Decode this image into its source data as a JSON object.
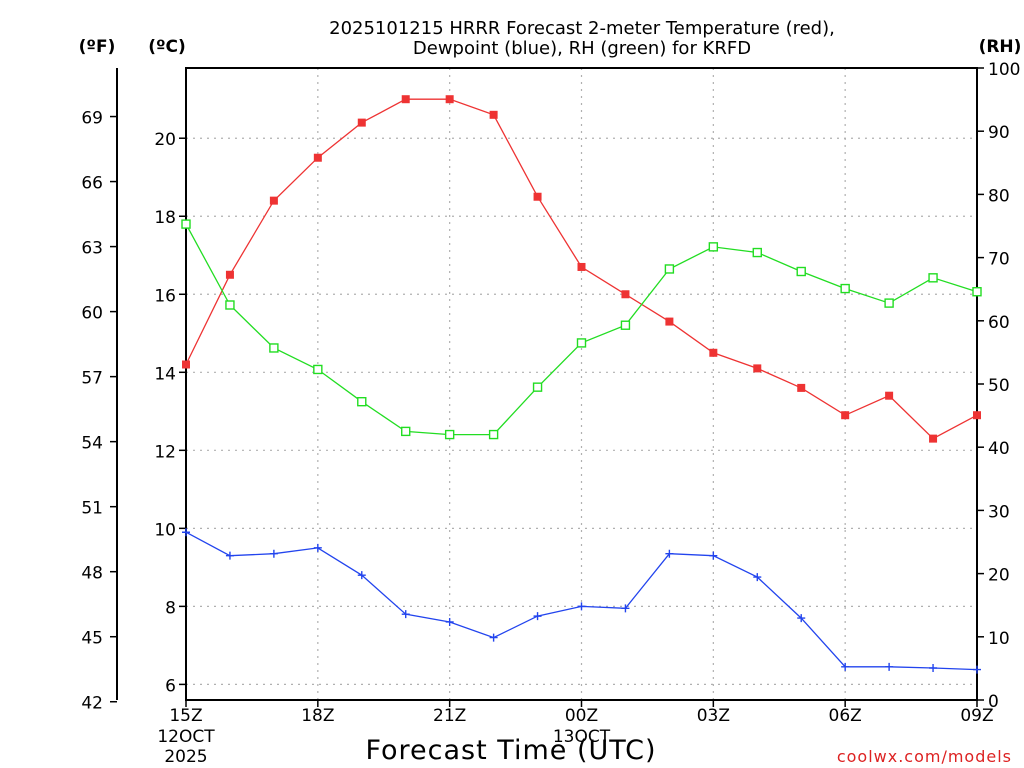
{
  "chart_data": {
    "type": "line",
    "title_line1": "2025101215 HRRR Forecast 2-meter Temperature (red),",
    "title_line2": "Dewpoint (blue), RH (green) for KRFD",
    "xlabel": "Forecast Time (UTC)",
    "watermark": "coolwx.com/models",
    "units": {
      "fahrenheit": "(ºF)",
      "celsius": "(ºC)",
      "rh": "(RH)"
    },
    "x_hours": [
      0,
      1,
      2,
      3,
      4,
      5,
      6,
      7,
      8,
      9,
      10,
      11,
      12,
      13,
      14,
      15,
      16,
      17,
      18
    ],
    "x_ticks": [
      {
        "hour": 0,
        "label": "15Z",
        "sub1": "12OCT",
        "sub2": "2025"
      },
      {
        "hour": 3,
        "label": "18Z",
        "sub1": "",
        "sub2": ""
      },
      {
        "hour": 6,
        "label": "21Z",
        "sub1": "",
        "sub2": ""
      },
      {
        "hour": 9,
        "label": "00Z",
        "sub1": "13OCT",
        "sub2": ""
      },
      {
        "hour": 12,
        "label": "03Z",
        "sub1": "",
        "sub2": ""
      },
      {
        "hour": 15,
        "label": "06Z",
        "sub1": "",
        "sub2": ""
      },
      {
        "hour": 18,
        "label": "09Z",
        "sub1": "",
        "sub2": ""
      }
    ],
    "xlim": [
      0,
      18
    ],
    "celsius_axis": {
      "ylim": [
        5.6,
        21.8
      ],
      "ticks": [
        "6",
        "8",
        "10",
        "12",
        "14",
        "16",
        "18",
        "20"
      ]
    },
    "fahrenheit_axis": {
      "ticks": [
        "42",
        "45",
        "48",
        "51",
        "54",
        "57",
        "60",
        "63",
        "66",
        "69"
      ]
    },
    "rh_axis": {
      "ylim": [
        0,
        100
      ],
      "ticks": [
        "0",
        "10",
        "20",
        "30",
        "40",
        "50",
        "60",
        "70",
        "80",
        "90",
        "100"
      ]
    },
    "series": [
      {
        "name": "Temperature",
        "unit": "C",
        "color": "#ee3333",
        "marker": "filled-square",
        "values": [
          14.2,
          16.5,
          18.4,
          19.5,
          20.4,
          21.0,
          21.0,
          20.6,
          18.5,
          16.7,
          16.0,
          15.3,
          14.5,
          14.1,
          13.6,
          12.9,
          13.4,
          12.3,
          12.9
        ]
      },
      {
        "name": "Dewpoint",
        "unit": "C",
        "color": "#2244ee",
        "marker": "plus",
        "values": [
          9.9,
          9.3,
          9.35,
          9.5,
          8.8,
          7.8,
          7.6,
          7.2,
          7.75,
          8.0,
          7.95,
          9.35,
          9.3,
          8.75,
          7.7,
          6.45,
          6.45,
          6.42,
          6.38
        ]
      },
      {
        "name": "RH",
        "unit": "%",
        "color": "#22dd22",
        "marker": "open-square",
        "values": [
          75.3,
          62.5,
          55.7,
          52.3,
          47.2,
          42.5,
          42.0,
          42.0,
          49.5,
          56.5,
          59.3,
          68.2,
          71.7,
          70.8,
          67.8,
          65.1,
          62.8,
          66.8,
          64.6
        ]
      }
    ]
  }
}
